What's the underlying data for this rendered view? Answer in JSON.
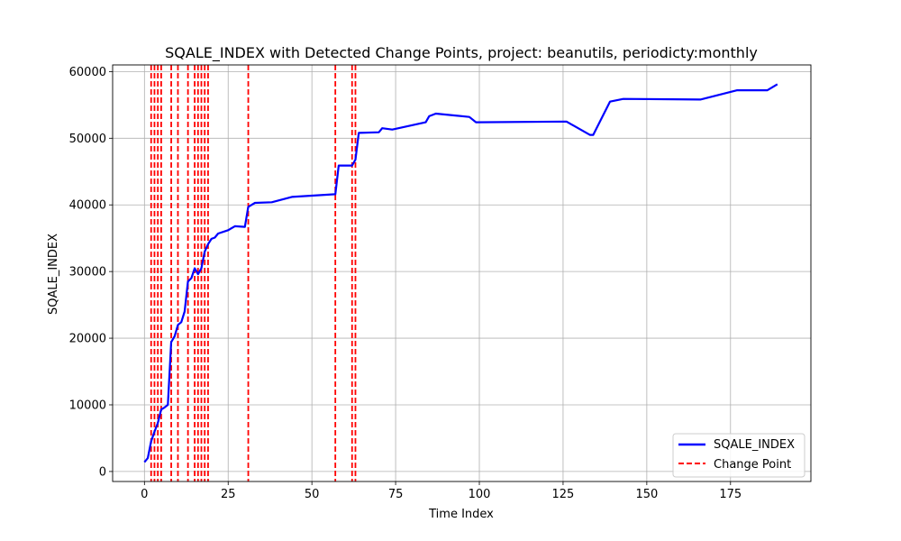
{
  "chart_data": {
    "type": "line",
    "title": "SQALE_INDEX with Detected Change Points, project: beanutils, periodicty:monthly",
    "xlabel": "Time Index",
    "ylabel": "SQALE_INDEX",
    "xlim": [
      -9.5,
      199
    ],
    "ylim": [
      -1500,
      61000
    ],
    "xticks": [
      0,
      25,
      50,
      75,
      100,
      125,
      150,
      175
    ],
    "yticks": [
      0,
      10000,
      20000,
      30000,
      40000,
      50000,
      60000
    ],
    "grid": true,
    "legend_position": "lower-right",
    "series": [
      {
        "name": "SQALE_INDEX",
        "color": "#0000ff",
        "style": "solid",
        "x": [
          0,
          1,
          2,
          3,
          4,
          5,
          6,
          7,
          8,
          9,
          10,
          11,
          12,
          13,
          14,
          15,
          16,
          17,
          18,
          19,
          20,
          21,
          22,
          25,
          27,
          30,
          31,
          33,
          38,
          44,
          57,
          58,
          62,
          63,
          64,
          70,
          71,
          74,
          84,
          85,
          87,
          97,
          99,
          126,
          133,
          134,
          139,
          143,
          166,
          177,
          186,
          189
        ],
        "y": [
          1400,
          2000,
          4500,
          6000,
          7300,
          9300,
          9600,
          10000,
          19400,
          20300,
          22000,
          22400,
          24000,
          28500,
          29000,
          30500,
          29600,
          30500,
          33000,
          34100,
          34900,
          35100,
          35700,
          36200,
          36800,
          36700,
          39700,
          40300,
          40400,
          41200,
          41600,
          45900,
          45900,
          46800,
          50800,
          50900,
          51500,
          51300,
          52400,
          53300,
          53700,
          53200,
          52400,
          52500,
          50500,
          50500,
          55500,
          55900,
          55800,
          57200,
          57200,
          58100
        ]
      }
    ],
    "change_points": {
      "name": "Change Point",
      "color": "#ff0000",
      "style": "dashed",
      "x": [
        2,
        3,
        4,
        5,
        8,
        10,
        13,
        15,
        16,
        17,
        18,
        19,
        31,
        57,
        62,
        63
      ]
    }
  }
}
